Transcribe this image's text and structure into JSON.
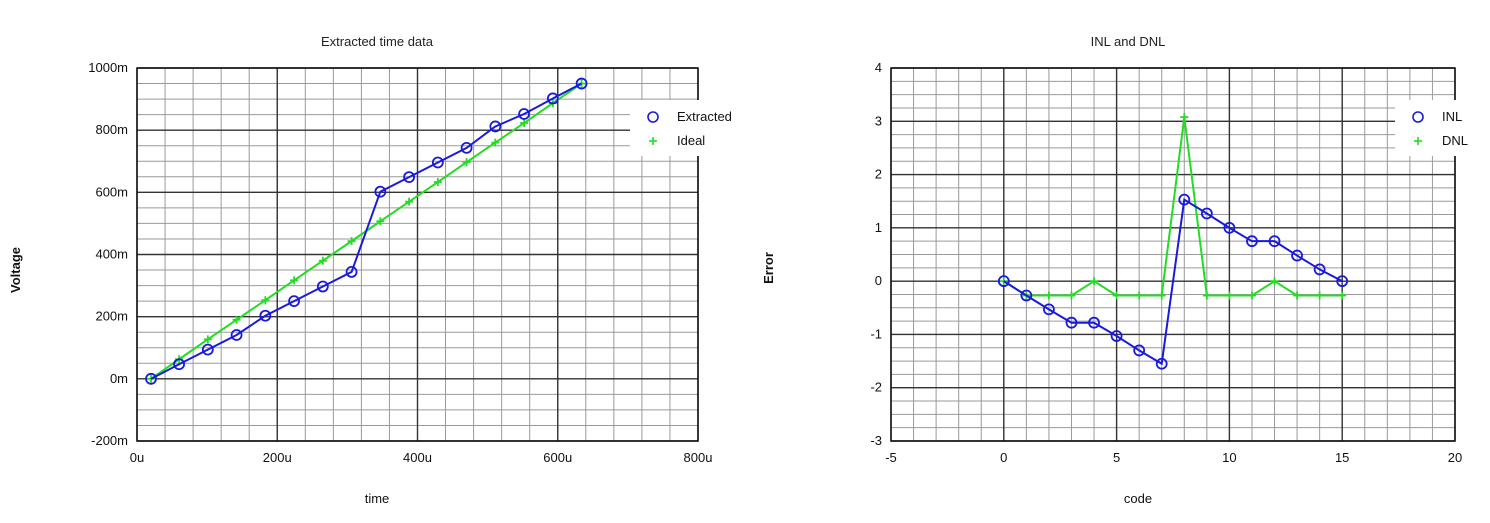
{
  "chart_data": [
    {
      "type": "line",
      "title": "Extracted time data",
      "xlabel": "time",
      "ylabel": "Voltage",
      "xlim": [
        0,
        800
      ],
      "ylim": [
        -200,
        1000
      ],
      "x_ticks": [
        "0u",
        "200u",
        "400u",
        "600u",
        "800u"
      ],
      "y_ticks": [
        "-200m",
        "0m",
        "200m",
        "400m",
        "600m",
        "800m",
        "1000m"
      ],
      "grid": true,
      "legend_position": "top-right",
      "series": [
        {
          "name": "Extracted",
          "marker": "circle",
          "color": "#1a1adc",
          "x": [
            20,
            60,
            101,
            142,
            183,
            224,
            265,
            306,
            347,
            388,
            429,
            470,
            511,
            552,
            593,
            634
          ],
          "y": [
            0,
            47,
            94,
            141,
            203,
            250,
            297,
            344,
            602,
            649,
            696,
            743,
            812,
            852,
            902,
            950
          ]
        },
        {
          "name": "Ideal",
          "marker": "plus",
          "color": "#22dd22",
          "x": [
            20,
            60,
            101,
            142,
            183,
            224,
            265,
            306,
            347,
            388,
            429,
            470,
            511,
            552,
            593,
            634
          ],
          "y": [
            0,
            63,
            127,
            190,
            253,
            317,
            380,
            443,
            507,
            570,
            633,
            697,
            760,
            823,
            887,
            950
          ]
        }
      ]
    },
    {
      "type": "line",
      "title": "INL and DNL",
      "xlabel": "code",
      "ylabel": "Error",
      "xlim": [
        -5,
        20
      ],
      "ylim": [
        -3,
        4
      ],
      "x_ticks": [
        "-5",
        "0",
        "5",
        "10",
        "15",
        "20"
      ],
      "y_ticks": [
        "-3",
        "-2",
        "-1",
        "0",
        "1",
        "2",
        "3",
        "4"
      ],
      "grid": true,
      "legend_position": "top-right",
      "series": [
        {
          "name": "INL",
          "marker": "circle",
          "color": "#1a1adc",
          "x": [
            0,
            1,
            2,
            3,
            4,
            5,
            6,
            7,
            8,
            9,
            10,
            11,
            12,
            13,
            14,
            15
          ],
          "y": [
            0,
            -0.27,
            -0.53,
            -0.78,
            -0.78,
            -1.03,
            -1.3,
            -1.55,
            1.53,
            1.27,
            1.0,
            0.75,
            0.75,
            0.48,
            0.22,
            0
          ]
        },
        {
          "name": "DNL",
          "marker": "plus",
          "color": "#22dd22",
          "x": [
            0,
            1,
            2,
            3,
            4,
            5,
            6,
            7,
            8,
            9,
            10,
            11,
            12,
            13,
            14,
            15
          ],
          "y": [
            0,
            -0.27,
            -0.27,
            -0.27,
            0,
            -0.27,
            -0.27,
            -0.27,
            3.08,
            -0.27,
            -0.27,
            -0.27,
            0,
            -0.27,
            -0.27,
            -0.27
          ]
        }
      ]
    }
  ]
}
